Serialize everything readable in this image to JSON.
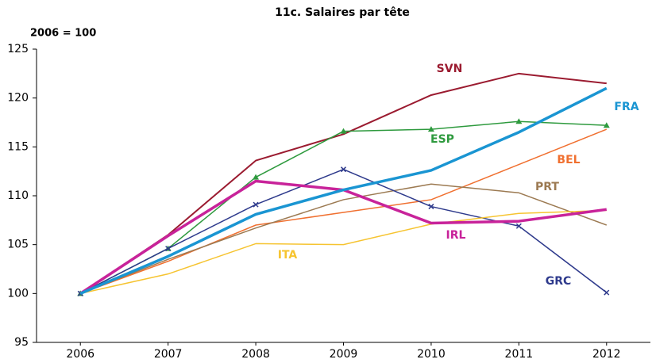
{
  "chart_data": {
    "type": "line",
    "title": "11c. Salaires par tête",
    "ylabel": "2006 = 100",
    "x": [
      2006,
      2007,
      2008,
      2009,
      2010,
      2011,
      2012
    ],
    "xlim": [
      2005.5,
      2012.5
    ],
    "xticks": [
      2006,
      2007,
      2008,
      2009,
      2010,
      2011,
      2012
    ],
    "ylim": [
      95,
      125
    ],
    "yticks": [
      95,
      100,
      105,
      110,
      115,
      120,
      125
    ],
    "grid": false,
    "series": [
      {
        "name": "SVN",
        "color": "#9b1b30",
        "linewidth": 2,
        "values": [
          100,
          106.0,
          113.6,
          116.3,
          120.3,
          122.5,
          121.5
        ]
      },
      {
        "name": "ESP",
        "color": "#2e9a3e",
        "linewidth": 1.5,
        "marker": "triangle",
        "values": [
          100,
          104.6,
          111.9,
          116.6,
          116.8,
          117.6,
          117.2
        ]
      },
      {
        "name": "BEL",
        "color": "#f07030",
        "linewidth": 1.5,
        "values": [
          100,
          103.3,
          107.0,
          108.3,
          109.6,
          113.2,
          116.8
        ]
      },
      {
        "name": "PRT",
        "color": "#9c7a52",
        "linewidth": 1.5,
        "values": [
          100,
          103.5,
          106.7,
          109.6,
          111.2,
          110.3,
          107.0
        ]
      },
      {
        "name": "GRC",
        "color": "#2e3a8c",
        "linewidth": 1.5,
        "marker": "x",
        "values": [
          100,
          104.6,
          109.1,
          112.7,
          108.9,
          106.9,
          100.1
        ]
      },
      {
        "name": "ITA",
        "color": "#f6c431",
        "linewidth": 1.5,
        "values": [
          100,
          102.0,
          105.1,
          105.0,
          107.1,
          108.2,
          108.5
        ]
      },
      {
        "name": "IRL",
        "color": "#c8239a",
        "linewidth": 3.5,
        "values": [
          100,
          105.9,
          111.5,
          110.6,
          107.2,
          107.4,
          108.6
        ]
      },
      {
        "name": "FRA",
        "color": "#1a95d2",
        "linewidth": 3.5,
        "values": [
          100,
          103.8,
          108.1,
          110.6,
          112.6,
          116.5,
          121.0
        ]
      }
    ]
  }
}
